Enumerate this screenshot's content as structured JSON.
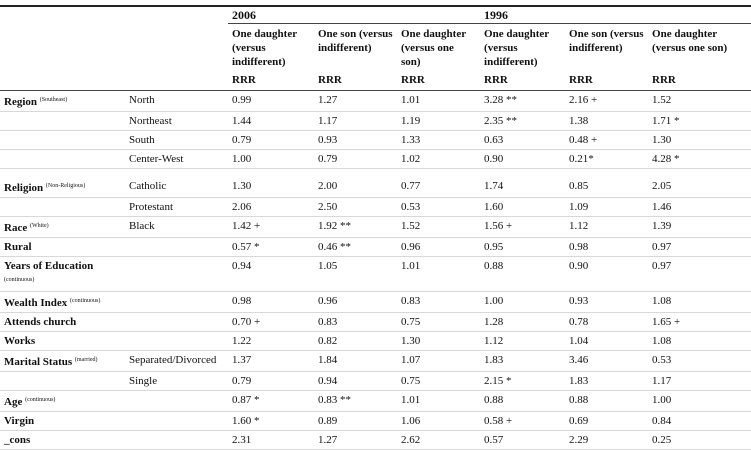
{
  "table": {
    "years": [
      "2006",
      "1996"
    ],
    "columns": [
      "One daughter (versus indifferent)",
      "One son (versus indifferent)",
      "One daughter (versus one son)",
      "One daughter (versus indifferent)",
      "One son (versus indifferent)",
      "One daughter (versus one son)"
    ],
    "stat": [
      "RRR",
      "RRR",
      "RRR",
      "RRR",
      "RRR",
      "RRR"
    ],
    "rows": [
      {
        "label": "Region",
        "note": "(Southeast)",
        "sublabel": "North",
        "cells": [
          "0.99",
          "1.27",
          "1.01",
          "3.28 **",
          "2.16 +",
          "1.52"
        ]
      },
      {
        "sublabel": "Northeast",
        "cells": [
          "1.44",
          "1.17",
          "1.19",
          "2.35 **",
          "1.38",
          "1.71 *"
        ]
      },
      {
        "sublabel": "South",
        "cells": [
          "0.79",
          "0.93",
          "1.33",
          "0.63",
          "0.48 +",
          "1.30"
        ]
      },
      {
        "sublabel": "Center-West",
        "cells": [
          "1.00",
          "0.79",
          "1.02",
          "0.90",
          "0.21*",
          "4.28 *"
        ]
      },
      {
        "label": "Religion",
        "note": "(Non-Religious)",
        "sublabel": "Catholic",
        "cells": [
          "1.30",
          "2.00",
          "0.77",
          "1.74",
          "0.85",
          "2.05"
        ]
      },
      {
        "sublabel": "Protestant",
        "cells": [
          "2.06",
          "2.50",
          "0.53",
          "1.60",
          "1.09",
          "1.46"
        ]
      },
      {
        "label": "Race",
        "note": "(White)",
        "sublabel": "Black",
        "cells": [
          "1.42 +",
          "1.92 **",
          "1.52",
          "1.56 +",
          "1.12",
          "1.39"
        ]
      },
      {
        "label": "Rural",
        "cells": [
          "0.57 *",
          "0.46 **",
          "0.96",
          "0.95",
          "0.98",
          "0.97"
        ]
      },
      {
        "label": "Years of Education",
        "note": "(continuous)",
        "cells": [
          "0.94",
          "1.05",
          "1.01",
          "0.88",
          "0.90",
          "0.97"
        ]
      },
      {
        "label": "Wealth Index",
        "note": "(continuous)",
        "cells": [
          "0.98",
          "0.96",
          "0.83",
          "1.00",
          "0.93",
          "1.08"
        ]
      },
      {
        "label": "Attends church",
        "cells": [
          "0.70 +",
          "0.83",
          "0.75",
          "1.28",
          "0.78",
          "1.65 +"
        ]
      },
      {
        "label": "Works",
        "cells": [
          "1.22",
          "0.82",
          "1.30",
          "1.12",
          "1.04",
          "1.08"
        ]
      },
      {
        "label": "Marital Status",
        "note": "(married)",
        "sublabel": "Separated/Divorced",
        "cells": [
          "1.37",
          "1.84",
          "1.07",
          "1.83",
          "3.46",
          "0.53"
        ]
      },
      {
        "sublabel": "Single",
        "cells": [
          "0.79",
          "0.94",
          "0.75",
          "2.15 *",
          "1.83",
          "1.17"
        ]
      },
      {
        "label": "Age",
        "note": "(continuous)",
        "cells": [
          "0.87 *",
          "0.83 **",
          "1.01",
          "0.88",
          "0.88",
          "1.00"
        ]
      },
      {
        "label": "Virgin",
        "cells": [
          "1.60 *",
          "0.89",
          "1.06",
          "0.58 +",
          "0.69",
          "0.84"
        ]
      },
      {
        "label": "_cons",
        "cells": [
          "2.31",
          "1.27",
          "2.62",
          "0.57",
          "2.29",
          "0.25"
        ]
      }
    ]
  }
}
